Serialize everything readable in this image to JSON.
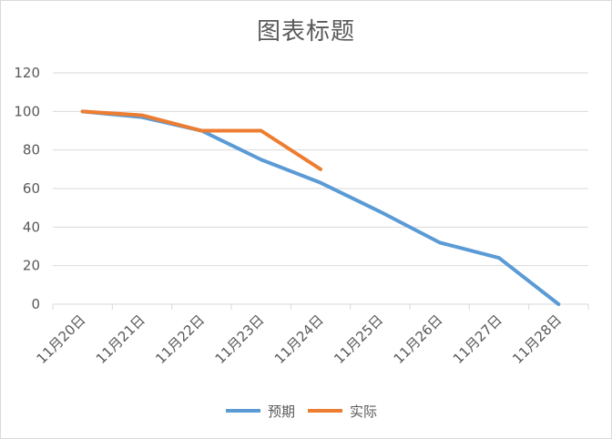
{
  "chart_data": {
    "type": "line",
    "title": "图表标题",
    "categories": [
      "11月20日",
      "11月21日",
      "11月22日",
      "11月23日",
      "11月24日",
      "11月25日",
      "11月26日",
      "11月27日",
      "11月28日"
    ],
    "ylim": [
      0,
      120
    ],
    "yticks": [
      0,
      20,
      40,
      60,
      80,
      100,
      120
    ],
    "grid": true,
    "legend": "bottom",
    "series": [
      {
        "name": "预期",
        "color": "#5b9bd5",
        "values": [
          100,
          97,
          90,
          75,
          63,
          48,
          32,
          24,
          0
        ]
      },
      {
        "name": "实际",
        "color": "#ed7d31",
        "values": [
          100,
          98,
          90,
          90,
          70,
          null,
          null,
          null,
          null
        ]
      }
    ]
  }
}
